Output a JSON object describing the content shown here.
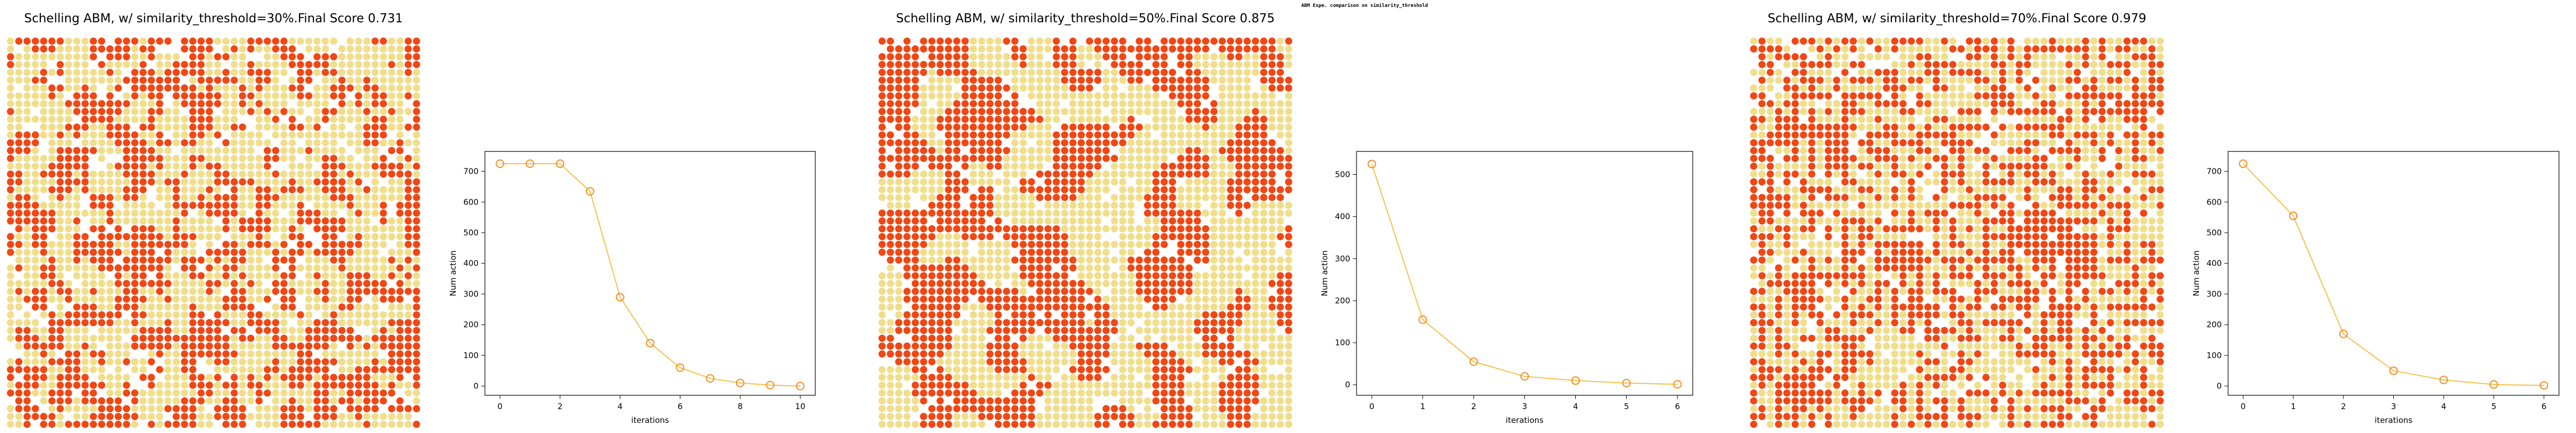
{
  "figure": {
    "suptitle": "ABM Expe. comparison on similarity_threshold",
    "palette": {
      "type_a": "#f04714",
      "type_b": "#f0de8c",
      "empty": "#ffffff",
      "line": "#f5c04a",
      "marker_edge": "#f58a1e"
    }
  },
  "chart_data": [
    {
      "type": "scatter",
      "title": "Schelling ABM, w/ similarity_threshold=30%.Final Score 0.731",
      "similarity_threshold": 0.3,
      "final_score": 0.731,
      "grid_size": [
        50,
        50
      ],
      "axes_visible": false,
      "agent_colors": [
        "#f04714",
        "#f0de8c"
      ],
      "pattern": "mixed"
    },
    {
      "type": "line",
      "title": "",
      "xlabel": "iterations",
      "ylabel": "Num action",
      "x": [
        0,
        1,
        2,
        3,
        4,
        5,
        6,
        7,
        8,
        9,
        10
      ],
      "values": [
        725,
        725,
        725,
        635,
        290,
        140,
        60,
        25,
        10,
        3,
        0
      ],
      "xlim": [
        -0.5,
        10.5
      ],
      "ylim": [
        -30,
        765
      ],
      "xticks": [
        0,
        2,
        4,
        6,
        8,
        10
      ],
      "yticks": [
        0,
        100,
        200,
        300,
        400,
        500,
        600,
        700
      ],
      "marker": "circle-open",
      "color": "#f5c04a"
    },
    {
      "type": "scatter",
      "title": "Schelling ABM, w/ similarity_threshold=50%.Final Score 0.875",
      "similarity_threshold": 0.5,
      "final_score": 0.875,
      "grid_size": [
        50,
        50
      ],
      "axes_visible": false,
      "agent_colors": [
        "#f04714",
        "#f0de8c"
      ],
      "pattern": "clustered"
    },
    {
      "type": "line",
      "title": "",
      "xlabel": "iterations",
      "ylabel": "Num action",
      "x": [
        0,
        1,
        2,
        3,
        4,
        5,
        6
      ],
      "values": [
        525,
        155,
        55,
        20,
        10,
        4,
        1
      ],
      "xlim": [
        -0.3,
        6.3
      ],
      "ylim": [
        -25,
        555
      ],
      "xticks": [
        0,
        1,
        2,
        3,
        4,
        5,
        6
      ],
      "yticks": [
        0,
        100,
        200,
        300,
        400,
        500
      ],
      "marker": "circle-open",
      "color": "#f5c04a"
    },
    {
      "type": "scatter",
      "title": "Schelling ABM, w/ similarity_threshold=70%.Final Score 0.979",
      "similarity_threshold": 0.7,
      "final_score": 0.979,
      "grid_size": [
        50,
        50
      ],
      "axes_visible": false,
      "agent_colors": [
        "#f04714",
        "#f0de8c"
      ],
      "pattern": "segregated"
    },
    {
      "type": "line",
      "title": "",
      "xlabel": "iterations",
      "ylabel": "Num action",
      "x": [
        0,
        1,
        2,
        3,
        4,
        5,
        6
      ],
      "values": [
        725,
        555,
        170,
        50,
        20,
        5,
        2
      ],
      "xlim": [
        -0.3,
        6.3
      ],
      "ylim": [
        -30,
        765
      ],
      "xticks": [
        0,
        1,
        2,
        3,
        4,
        5,
        6
      ],
      "yticks": [
        0,
        100,
        200,
        300,
        400,
        500,
        600,
        700
      ],
      "marker": "circle-open",
      "color": "#f5c04a"
    }
  ]
}
